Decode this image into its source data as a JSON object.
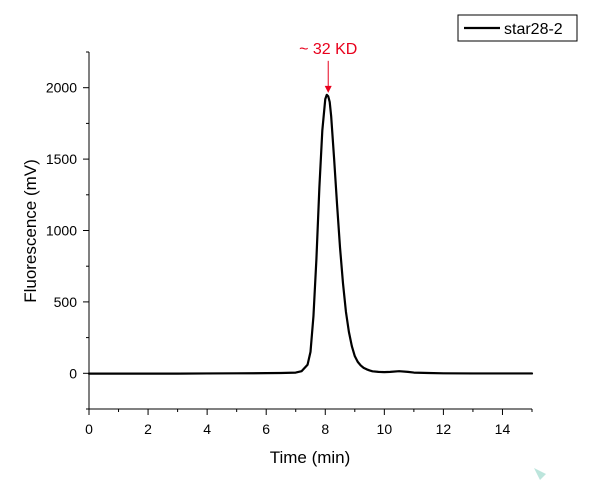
{
  "chart_data": {
    "type": "line",
    "title": "",
    "xlabel": "Time (min)",
    "ylabel": "Fluorescence (mV)",
    "xlim": [
      0,
      15
    ],
    "ylim": [
      -250,
      2250
    ],
    "x_ticks": [
      0,
      2,
      4,
      6,
      8,
      10,
      12,
      14
    ],
    "y_ticks": [
      0,
      500,
      1000,
      1500,
      2000
    ],
    "grid": false,
    "legend_position": "top-right",
    "series": [
      {
        "name": "star28-2",
        "color": "#000000",
        "x": [
          0,
          1,
          2,
          3,
          4,
          5,
          6,
          6.5,
          7,
          7.2,
          7.4,
          7.5,
          7.6,
          7.7,
          7.8,
          7.9,
          8.0,
          8.05,
          8.1,
          8.15,
          8.2,
          8.3,
          8.4,
          8.5,
          8.6,
          8.7,
          8.8,
          8.9,
          9.0,
          9.1,
          9.2,
          9.3,
          9.4,
          9.5,
          9.6,
          9.8,
          10.0,
          10.2,
          10.5,
          10.8,
          11.0,
          11.5,
          12,
          13,
          14,
          15
        ],
        "y": [
          -2,
          -2,
          -2,
          -2,
          -1,
          0,
          1,
          2,
          5,
          15,
          60,
          150,
          400,
          800,
          1300,
          1700,
          1920,
          1950,
          1940,
          1900,
          1800,
          1500,
          1180,
          880,
          630,
          430,
          290,
          190,
          120,
          80,
          55,
          38,
          28,
          20,
          14,
          10,
          8,
          10,
          15,
          10,
          5,
          2,
          0,
          -1,
          -1,
          -1
        ]
      }
    ],
    "annotations": [
      {
        "text": "~ 32 KD",
        "color": "#e8001c",
        "x": 8.1,
        "y": 1950,
        "arrow": true
      }
    ]
  }
}
